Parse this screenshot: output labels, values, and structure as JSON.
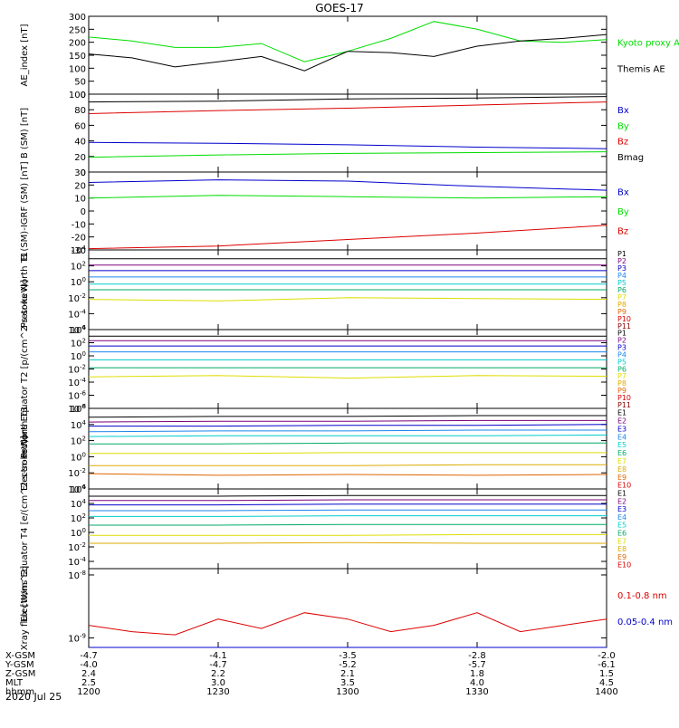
{
  "title": "GOES-17",
  "date_label": "2020 Jul 25",
  "colors": {
    "black": "#000000",
    "blue": "#0000cc",
    "green": "#00dd00",
    "red": "#dd0000",
    "P1": "#000000",
    "P2": "#7a007a",
    "P3": "#0000cc",
    "P4": "#1c86ee",
    "P5": "#00cccc",
    "P6": "#00aa66",
    "P7": "#dddd00",
    "P8": "#ddaa00",
    "P9": "#dd6600",
    "P10": "#dd0000",
    "P11": "#880000"
  },
  "chart_data": [
    {
      "type": "line",
      "ylabel": "AE_index [nT]",
      "yticks": [
        "300",
        "250",
        "200",
        "150",
        "100",
        "50",
        "0"
      ],
      "ylim": [
        0,
        300
      ],
      "legend": [
        "Kyoto proxy AE",
        "Themis AE"
      ],
      "x": [
        "1200",
        "1210",
        "1220",
        "1230",
        "1240",
        "1250",
        "1300",
        "1310",
        "1320",
        "1330",
        "1340",
        "1350",
        "1400"
      ],
      "series": [
        {
          "name": "Kyoto proxy AE",
          "values": [
            220,
            205,
            180,
            180,
            195,
            125,
            165,
            215,
            280,
            250,
            205,
            200,
            210
          ]
        },
        {
          "name": "Themis AE",
          "values": [
            155,
            140,
            105,
            125,
            145,
            90,
            165,
            160,
            145,
            185,
            205,
            215,
            230
          ]
        }
      ]
    },
    {
      "type": "line",
      "ylabel": "B (SM) [nT]",
      "yticks": [
        "100",
        "80",
        "60",
        "40",
        "20",
        "0"
      ],
      "ylim": [
        0,
        100
      ],
      "legend": [
        "Bx",
        "By",
        "Bz",
        "Bmag"
      ],
      "x": [
        "1200",
        "1230",
        "1300",
        "1330",
        "1400"
      ],
      "series": [
        {
          "name": "Bmag",
          "values": [
            90,
            91,
            94,
            95,
            97
          ]
        },
        {
          "name": "Bz",
          "values": [
            75,
            79,
            82,
            86,
            90
          ]
        },
        {
          "name": "Bx",
          "values": [
            38,
            37,
            35,
            32,
            30
          ]
        },
        {
          "name": "By",
          "values": [
            19,
            22,
            24,
            25,
            26
          ]
        }
      ]
    },
    {
      "type": "line",
      "ylabel": "B (SM)-IGRF (SM) [nT]",
      "yticks": [
        "30",
        "20",
        "10",
        "0",
        "-10",
        "-20",
        "-30"
      ],
      "ylim": [
        -30,
        30
      ],
      "legend": [
        "Bx",
        "By",
        "Bz"
      ],
      "x": [
        "1200",
        "1230",
        "1300",
        "1330",
        "1400"
      ],
      "series": [
        {
          "name": "Bx",
          "values": [
            22,
            24,
            23,
            19,
            16
          ]
        },
        {
          "name": "By",
          "values": [
            10,
            12,
            11,
            10,
            11
          ]
        },
        {
          "name": "Bz",
          "values": [
            -29,
            -27,
            -22,
            -17,
            -11
          ]
        }
      ]
    },
    {
      "type": "line",
      "ylabel": "Protons North T1",
      "yscale": "log",
      "yticks": [
        "10^4",
        "10^2",
        "10^0",
        "10^-2",
        "10^-4",
        "10^-6"
      ],
      "ylim": [
        -6,
        4
      ],
      "legend": [
        "P1",
        "P2",
        "P3",
        "P4",
        "P5",
        "P6",
        "P7",
        "P8",
        "P9",
        "P10",
        "P11"
      ],
      "x": [
        "1200",
        "1230",
        "1300",
        "1330",
        "1400"
      ],
      "series": [
        {
          "name": "P1",
          "values": [
            2.9,
            2.9,
            2.9,
            2.9,
            2.9
          ]
        },
        {
          "name": "P2",
          "values": [
            2.1,
            2.1,
            2.1,
            2.1,
            2.1
          ]
        },
        {
          "name": "P3",
          "values": [
            1.4,
            1.4,
            1.4,
            1.4,
            1.4
          ]
        },
        {
          "name": "P4",
          "values": [
            0.6,
            0.6,
            0.6,
            0.6,
            0.6
          ]
        },
        {
          "name": "P5",
          "values": [
            -0.3,
            -0.3,
            -0.3,
            -0.3,
            -0.3
          ]
        },
        {
          "name": "P6",
          "values": [
            -1.0,
            -1.0,
            -1.0,
            -1.0,
            -1.0
          ]
        },
        {
          "name": "P7",
          "values": [
            -2.2,
            -2.4,
            -2.0,
            -2.1,
            -2.2
          ]
        }
      ]
    },
    {
      "type": "line",
      "ylabel": "Protons Equator T2 [p/(cm^2-s-sr-keV)]",
      "yscale": "log",
      "yticks": [
        "10^4",
        "10^2",
        "10^0",
        "10^-2",
        "10^-4",
        "10^-6",
        "10^-8"
      ],
      "ylim": [
        -8,
        4
      ],
      "legend": [
        "P1",
        "P2",
        "P3",
        "P4",
        "P5",
        "P6",
        "P7",
        "P8",
        "P9",
        "P10",
        "P11"
      ],
      "x": [
        "1200",
        "1230",
        "1300",
        "1330",
        "1400"
      ],
      "series": [
        {
          "name": "P1",
          "values": [
            3.0,
            3.0,
            3.0,
            3.0,
            3.0
          ]
        },
        {
          "name": "P2",
          "values": [
            2.3,
            2.3,
            2.3,
            2.3,
            2.3
          ]
        },
        {
          "name": "P3",
          "values": [
            1.5,
            1.5,
            1.5,
            1.5,
            1.5
          ]
        },
        {
          "name": "P4",
          "values": [
            0.6,
            0.6,
            0.6,
            0.6,
            0.6
          ]
        },
        {
          "name": "P5",
          "values": [
            -0.6,
            -0.6,
            -0.6,
            -0.6,
            -0.6
          ]
        },
        {
          "name": "P6",
          "values": [
            -1.8,
            -1.8,
            -1.8,
            -1.8,
            -1.8
          ]
        },
        {
          "name": "P7",
          "values": [
            -3.2,
            -3.0,
            -3.4,
            -3.0,
            -3.1
          ]
        }
      ]
    },
    {
      "type": "line",
      "ylabel": "Electrons North T3",
      "yscale": "log",
      "yticks": [
        "10^6",
        "10^4",
        "10^2",
        "10^0",
        "10^-2",
        "10^-4"
      ],
      "ylim": [
        -4,
        6
      ],
      "legend": [
        "E1",
        "E2",
        "E3",
        "E4",
        "E5",
        "E6",
        "E7",
        "E8",
        "E9",
        "E10"
      ],
      "x": [
        "1200",
        "1230",
        "1300",
        "1330",
        "1400"
      ],
      "series": [
        {
          "name": "E1",
          "values": [
            4.9,
            5.0,
            5.0,
            5.1,
            5.1
          ]
        },
        {
          "name": "E2",
          "values": [
            4.3,
            4.4,
            4.4,
            4.5,
            4.5
          ]
        },
        {
          "name": "E3",
          "values": [
            3.8,
            3.8,
            3.9,
            3.9,
            4.0
          ]
        },
        {
          "name": "E4",
          "values": [
            3.1,
            3.2,
            3.2,
            3.3,
            3.3
          ]
        },
        {
          "name": "E5",
          "values": [
            2.5,
            2.6,
            2.6,
            2.6,
            2.7
          ]
        },
        {
          "name": "E6",
          "values": [
            1.6,
            1.6,
            1.7,
            1.7,
            1.7
          ]
        },
        {
          "name": "E7",
          "values": [
            0.4,
            0.4,
            0.5,
            0.5,
            0.5
          ]
        },
        {
          "name": "E8",
          "values": [
            -1.1,
            -1.1,
            -1.1,
            -1.0,
            -1.0
          ]
        },
        {
          "name": "E9",
          "values": [
            -2.1,
            -2.3,
            -2.2,
            -2.3,
            -2.2
          ]
        }
      ]
    },
    {
      "type": "line",
      "ylabel": "Electrons Equator T4 [e/(cm^2-s-sr-keV)]",
      "yscale": "log",
      "yticks": [
        "10^6",
        "10^4",
        "10^2",
        "10^0",
        "10^-2",
        "10^-4"
      ],
      "ylim": [
        -5,
        6
      ],
      "legend": [
        "E1",
        "E2",
        "E3",
        "E4",
        "E5",
        "E6",
        "E7",
        "E8",
        "E9",
        "E10"
      ],
      "x": [
        "1200",
        "1230",
        "1300",
        "1330",
        "1400"
      ],
      "series": [
        {
          "name": "E1",
          "values": [
            5.0,
            5.0,
            5.1,
            5.1,
            5.1
          ]
        },
        {
          "name": "E2",
          "values": [
            4.4,
            4.4,
            4.5,
            4.5,
            4.5
          ]
        },
        {
          "name": "E3",
          "values": [
            3.8,
            3.8,
            3.9,
            3.9,
            3.9
          ]
        },
        {
          "name": "E4",
          "values": [
            3.0,
            3.0,
            3.1,
            3.1,
            3.1
          ]
        },
        {
          "name": "E5",
          "values": [
            2.2,
            2.2,
            2.3,
            2.3,
            2.3
          ]
        },
        {
          "name": "E6",
          "values": [
            1.0,
            1.0,
            1.1,
            1.1,
            1.1
          ]
        },
        {
          "name": "E7",
          "values": [
            -0.4,
            -0.4,
            -0.4,
            -0.3,
            -0.3
          ]
        },
        {
          "name": "E8",
          "values": [
            -1.5,
            -1.5,
            -1.4,
            -1.5,
            -1.5
          ]
        }
      ]
    },
    {
      "type": "line",
      "ylabel": "Xray flux [W/m^2]",
      "yscale": "log",
      "yticks": [
        "10^-8",
        "10^-9"
      ],
      "ylim": [
        -9.15,
        -7.9
      ],
      "legend": [
        "0.1-0.8 nm",
        "0.05-0.4 nm"
      ],
      "x": [
        "1200",
        "1210",
        "1220",
        "1230",
        "1240",
        "1250",
        "1300",
        "1310",
        "1320",
        "1330",
        "1340",
        "1350",
        "1400"
      ],
      "series": [
        {
          "name": "0.1-0.8 nm",
          "values": [
            -8.8,
            -8.9,
            -8.95,
            -8.7,
            -8.85,
            -8.6,
            -8.7,
            -8.9,
            -8.8,
            -8.6,
            -8.9,
            -8.8,
            -8.7
          ]
        },
        {
          "name": "0.05-0.4 nm",
          "values": [
            -9.15,
            -9.15,
            -9.15,
            -9.15,
            -9.15,
            -9.15,
            -9.15,
            -9.15,
            -9.15,
            -9.15,
            -9.15,
            -9.15,
            -9.15
          ]
        }
      ]
    }
  ],
  "orbit": {
    "labels": [
      "X-GSM",
      "Y-GSM",
      "Z-GSM",
      "MLT",
      "hhmm"
    ],
    "ticks": [
      "1200",
      "1230",
      "1300",
      "1330",
      "1400"
    ],
    "values": [
      [
        "-4.7",
        "-4.1",
        "-3.5",
        "-2.8",
        "-2.0"
      ],
      [
        "-4.0",
        "-4.7",
        "-5.2",
        "-5.7",
        "-6.1"
      ],
      [
        "2.4",
        "2.2",
        "2.1",
        "1.8",
        "1.5"
      ],
      [
        "2.5",
        "3.0",
        "3.5",
        "4.0",
        "4.5"
      ],
      [
        "1200",
        "1230",
        "1300",
        "1330",
        "1400"
      ]
    ]
  }
}
